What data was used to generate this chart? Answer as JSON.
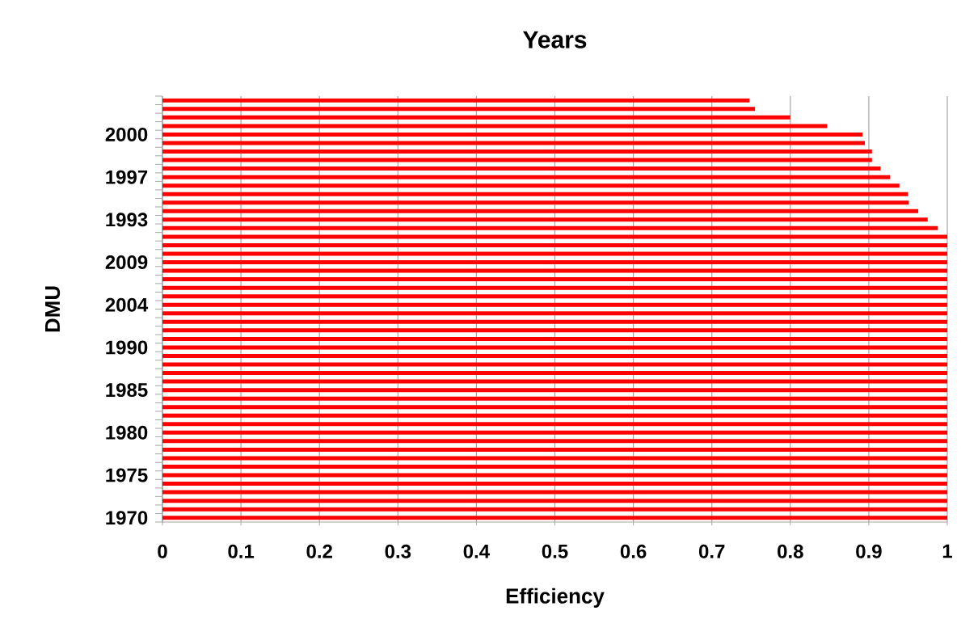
{
  "chart_data": {
    "type": "bar",
    "orientation": "horizontal",
    "title": "Years",
    "xlabel": "Efficiency",
    "ylabel": "DMU",
    "color": "#ff0000",
    "categories": [
      null,
      null,
      null,
      null,
      "2000",
      null,
      null,
      null,
      null,
      "1997",
      null,
      null,
      null,
      null,
      "1993",
      null,
      null,
      null,
      null,
      "2009",
      null,
      null,
      null,
      null,
      "2004",
      null,
      null,
      null,
      null,
      "1990",
      null,
      null,
      null,
      null,
      "1985",
      null,
      null,
      null,
      null,
      "1980",
      null,
      null,
      null,
      null,
      "1975",
      null,
      null,
      null,
      null,
      "1970"
    ],
    "values": [
      0.748,
      0.755,
      0.8,
      0.847,
      0.892,
      0.895,
      0.904,
      0.904,
      0.915,
      0.927,
      0.939,
      0.95,
      0.951,
      0.963,
      0.975,
      0.988,
      1,
      1,
      1,
      1,
      1,
      1,
      1,
      1,
      1,
      1,
      1,
      1,
      1,
      1,
      1,
      1,
      1,
      1,
      1,
      1,
      1,
      1,
      1,
      1,
      1,
      1,
      1,
      1,
      1,
      1,
      1,
      1,
      1,
      1
    ],
    "xlim": [
      0,
      1
    ],
    "xticks": [
      0,
      0.1,
      0.2,
      0.3,
      0.4,
      0.5,
      0.6,
      0.7,
      0.8,
      0.9,
      1
    ],
    "grid": "x"
  }
}
